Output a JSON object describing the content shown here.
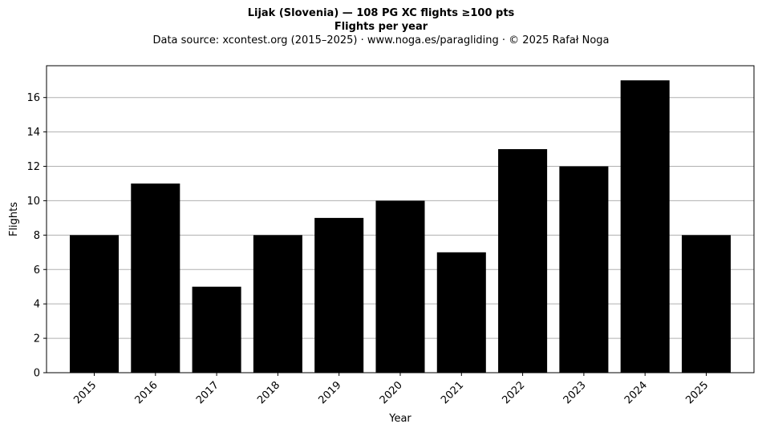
{
  "chart_data": {
    "type": "bar",
    "title": "Lijak (Slovenia)  —  108 PG XC flights ≥100 pts",
    "subtitle": "Flights per year",
    "source": "Data source: xcontest.org (2015–2025)  ·  www.noga.es/paragliding  ·  © 2025 Rafał Noga",
    "xlabel": "Year",
    "ylabel": "Flights",
    "categories": [
      "2015",
      "2016",
      "2017",
      "2018",
      "2019",
      "2020",
      "2021",
      "2022",
      "2023",
      "2024",
      "2025"
    ],
    "values": [
      8,
      11,
      5,
      8,
      9,
      10,
      7,
      13,
      12,
      17,
      8
    ],
    "ylim": [
      0,
      17.85
    ],
    "yticks": [
      0,
      2,
      4,
      6,
      8,
      10,
      12,
      14,
      16
    ],
    "grid": "y",
    "bar_color": "#000000",
    "grid_color": "#b0b0b0"
  }
}
